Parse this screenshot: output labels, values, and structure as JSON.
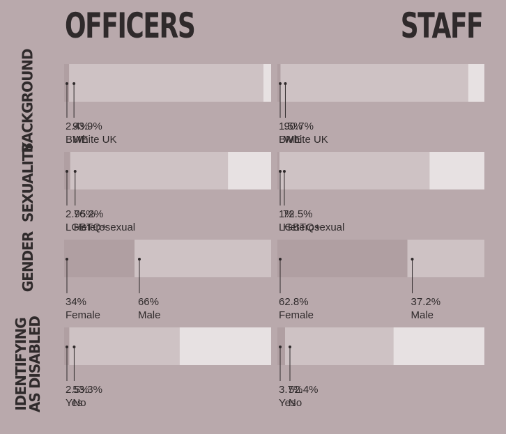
{
  "chart_data": {
    "type": "bar",
    "columns": [
      "OFFICERS",
      "STAFF"
    ],
    "rows": [
      {
        "label": "BACKGROUND",
        "groups": [
          {
            "segments": [
              {
                "value": 2.4,
                "label": "BME"
              },
              {
                "value": 93.9,
                "label": "White UK"
              },
              {
                "value": 3.7,
                "label": ""
              }
            ],
            "annotations": [
              {
                "value_text": "2.4%",
                "label": "BME",
                "segment": 0
              },
              {
                "value_text": "93.9%",
                "label": "White UK",
                "segment": 1
              }
            ]
          },
          {
            "segments": [
              {
                "value": 1.5,
                "label": "BME"
              },
              {
                "value": 90.7,
                "label": "White UK"
              },
              {
                "value": 7.8,
                "label": ""
              }
            ],
            "annotations": [
              {
                "value_text": "1.5%",
                "label": "BME",
                "segment": 0
              },
              {
                "value_text": "90.7%",
                "label": "White UK",
                "segment": 1
              }
            ]
          }
        ]
      },
      {
        "label": "SEXUALITY",
        "groups": [
          {
            "segments": [
              {
                "value": 2.95,
                "label": "LGBTQ+"
              },
              {
                "value": 76.2,
                "label": "Heterosexual"
              },
              {
                "value": 20.85,
                "label": ""
              }
            ],
            "annotations": [
              {
                "value_text": "2.95%",
                "label": "LGBTQ+",
                "segment": 0
              },
              {
                "value_text": "76.2%",
                "label": "Heterosexual",
                "segment": 1
              }
            ]
          },
          {
            "segments": [
              {
                "value": 1,
                "label": "LGBTQ+"
              },
              {
                "value": 72.5,
                "label": "Heterosexual"
              },
              {
                "value": 26.5,
                "label": ""
              }
            ],
            "annotations": [
              {
                "value_text": "1%",
                "label": "LGBTQ+",
                "segment": 0
              },
              {
                "value_text": "72.5%",
                "label": "Heterosexual",
                "segment": 1
              }
            ]
          }
        ]
      },
      {
        "label": "GENDER",
        "groups": [
          {
            "segments": [
              {
                "value": 34,
                "label": "Female"
              },
              {
                "value": 66,
                "label": "Male"
              }
            ],
            "annotations": [
              {
                "value_text": "34%",
                "label": "Female",
                "segment": 0
              },
              {
                "value_text": "66%",
                "label": "Male",
                "segment": 1
              }
            ]
          },
          {
            "segments": [
              {
                "value": 62.8,
                "label": "Female"
              },
              {
                "value": 37.2,
                "label": "Male"
              }
            ],
            "annotations": [
              {
                "value_text": "62.8%",
                "label": "Female",
                "segment": 0
              },
              {
                "value_text": "37.2%",
                "label": "Male",
                "segment": 1
              }
            ]
          }
        ]
      },
      {
        "label": "IDENTIFYING\nAS DISABLED",
        "groups": [
          {
            "segments": [
              {
                "value": 2.5,
                "label": "Yes"
              },
              {
                "value": 53.3,
                "label": "No"
              },
              {
                "value": 44.2,
                "label": ""
              }
            ],
            "annotations": [
              {
                "value_text": "2.5%",
                "label": "Yes",
                "segment": 0
              },
              {
                "value_text": "53.3%",
                "label": "No",
                "segment": 1
              }
            ]
          },
          {
            "segments": [
              {
                "value": 3.7,
                "label": "Yes"
              },
              {
                "value": 52.4,
                "label": "No"
              },
              {
                "value": 43.9,
                "label": ""
              }
            ],
            "annotations": [
              {
                "value_text": "3.7%",
                "label": "Yes",
                "segment": 0
              },
              {
                "value_text": "52.4%",
                "label": "No",
                "segment": 1
              }
            ]
          }
        ]
      }
    ],
    "colors": {
      "background": "#b9a9ac",
      "segment_first": "#b09fa2",
      "segment_second": "#cec2c4",
      "segment_rest": "#e7e1e2",
      "text": "#2f2a2b"
    }
  }
}
